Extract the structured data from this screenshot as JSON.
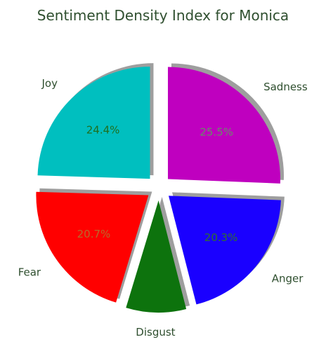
{
  "chart_data": {
    "type": "pie",
    "title": "Sentiment Density Index for Monica",
    "slices": [
      {
        "label": "Sadness",
        "value": 25.5,
        "display": "25.5%",
        "color": "#bf00bf",
        "text_color": "#6a8a6a"
      },
      {
        "label": "Anger",
        "value": 20.3,
        "display": "20.3%",
        "color": "#1a00ff",
        "text_color": "#2f6f2f"
      },
      {
        "label": "Disgust",
        "value": 8.6,
        "display": "",
        "color": "#0d730d",
        "text_color": "#2f6f2f"
      },
      {
        "label": "Fear",
        "value": 20.7,
        "display": "20.7%",
        "color": "#ff0000",
        "text_color": "#b86a2a"
      },
      {
        "label": "Joy",
        "value": 24.4,
        "display": "24.4%",
        "color": "#00bfbf",
        "text_color": "#1f6f1f"
      }
    ],
    "start_angle_deg": 90,
    "direction": "clockwise",
    "explode": true,
    "shadow": true
  }
}
